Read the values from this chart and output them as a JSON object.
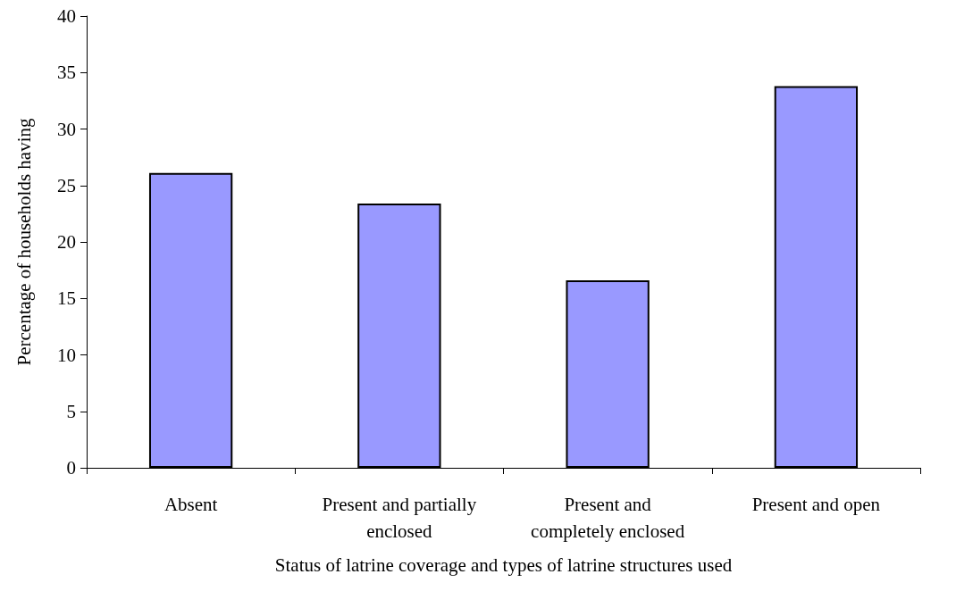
{
  "chart_data": {
    "type": "bar",
    "xlabel": "Status of latrine coverage and types of latrine structures used",
    "ylabel": "Percentage of households having",
    "categories": [
      "Absent",
      "Present and partially\nenclosed",
      "Present and\ncompletely enclosed",
      "Present and open"
    ],
    "values": [
      26.1,
      23.4,
      16.6,
      33.8
    ],
    "color": "#9999ff",
    "ylim": [
      0,
      40
    ],
    "yticks": [
      0,
      5,
      10,
      15,
      20,
      25,
      30,
      35,
      40
    ],
    "grid": false
  }
}
